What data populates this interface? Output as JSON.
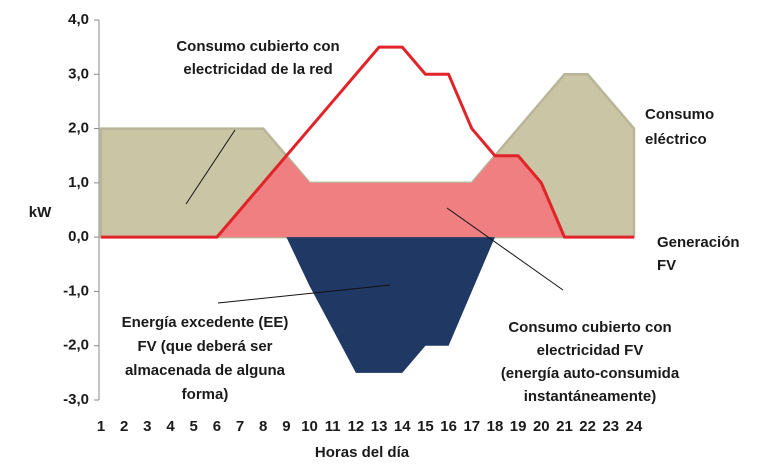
{
  "chart_data": {
    "type": "area",
    "ylabel": "kW",
    "xlabel": "Horas del día",
    "x": [
      1,
      2,
      3,
      4,
      5,
      6,
      7,
      8,
      9,
      10,
      11,
      12,
      13,
      14,
      15,
      16,
      17,
      18,
      19,
      20,
      21,
      22,
      23,
      24
    ],
    "xlim": [
      1,
      24
    ],
    "xticks": [
      1,
      2,
      3,
      4,
      5,
      6,
      7,
      8,
      9,
      10,
      11,
      12,
      13,
      14,
      15,
      16,
      17,
      18,
      19,
      20,
      21,
      22,
      23,
      24
    ],
    "ylim": [
      -3,
      4
    ],
    "yticks": [
      {
        "value": -3,
        "label": "-3,0"
      },
      {
        "value": -2,
        "label": "-2,0"
      },
      {
        "value": -1,
        "label": "-1,0"
      },
      {
        "value": 0,
        "label": "0,0"
      },
      {
        "value": 1,
        "label": "1,0"
      },
      {
        "value": 2,
        "label": "2,0"
      },
      {
        "value": 3,
        "label": "3,0"
      },
      {
        "value": 4,
        "label": "4,0"
      }
    ],
    "series": [
      {
        "style": "area",
        "color": "#cac6a5",
        "line_color": "#b9b598",
        "values": [
          2,
          2,
          2,
          2,
          2,
          2,
          2,
          2,
          1.5,
          1,
          1,
          1,
          1,
          1,
          1,
          1,
          1,
          1.5,
          2,
          2.5,
          3,
          3,
          2.5,
          2
        ]
      },
      {
        "style": "area",
        "color": "#ef7f80",
        "values": [
          null,
          null,
          null,
          null,
          null,
          0,
          0.5,
          1,
          1.5,
          1,
          1,
          1,
          1,
          1,
          1,
          1,
          1,
          1.5,
          1.5,
          1,
          0,
          null,
          null,
          null
        ]
      },
      {
        "style": "line",
        "color": "#e0242a",
        "values": [
          0,
          0,
          0,
          0,
          0,
          0,
          0.5,
          1,
          1.5,
          2,
          2.5,
          3,
          3.5,
          3.5,
          3,
          3,
          2,
          1.5,
          1.5,
          1,
          0,
          0,
          0,
          0
        ]
      },
      {
        "style": "area",
        "color": "#1f3864",
        "values": [
          null,
          null,
          null,
          null,
          null,
          null,
          null,
          null,
          0,
          -0.9,
          -1.7,
          -2.5,
          -2.5,
          -2.5,
          -2,
          -2,
          -1,
          0,
          null,
          null,
          null,
          null,
          null,
          null
        ]
      }
    ],
    "annotations": [
      [
        "Consumo cubierto con",
        "electricidad de la red"
      ],
      [
        "Consumo",
        "eléctrico"
      ],
      [
        "Generación",
        "FV"
      ],
      [
        "Energía excedente (EE)",
        "FV (que deberá ser",
        "almacenada de alguna",
        "forma)"
      ],
      [
        "Consumo cubierto con",
        "electricidad FV",
        "(energía auto-consumida",
        "instantáneamente)"
      ]
    ]
  }
}
